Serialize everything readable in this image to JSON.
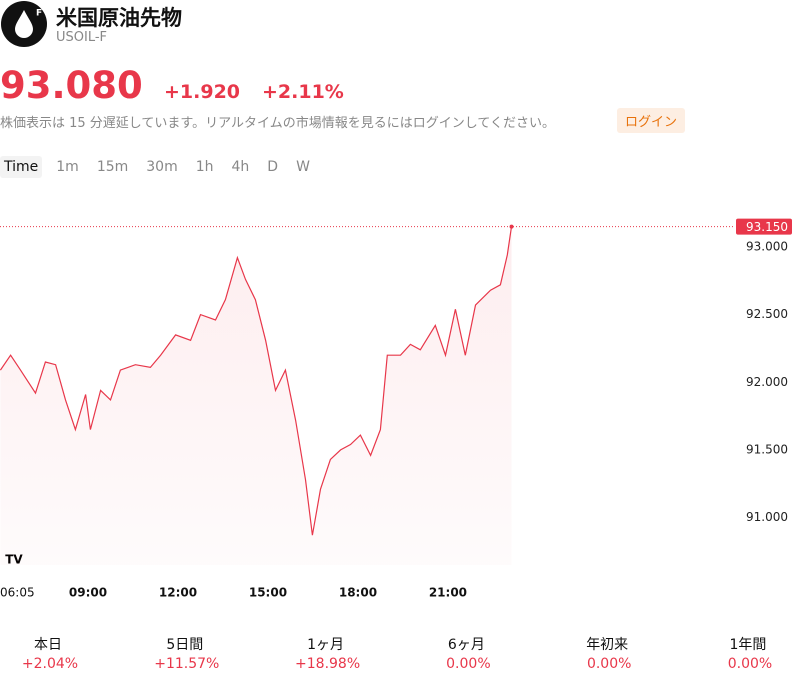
{
  "header": {
    "name": "米国原油先物",
    "symbol": "USOIL-F",
    "price": "93.080",
    "change": "+1.920",
    "change_pct": "+2.11%",
    "notice": "株価表示は 15 分遅延しています。リアルタイムの市場情報を見るにはログインしてください。",
    "login": "ログイン"
  },
  "intervals": [
    "Time",
    "1m",
    "15m",
    "30m",
    "1h",
    "4h",
    "D",
    "W"
  ],
  "chart_data": {
    "type": "line",
    "color": "#e8374a",
    "x": [
      6.08,
      6.42,
      6.75,
      7.25,
      7.58,
      7.92,
      8.25,
      8.58,
      8.92,
      9.08,
      9.42,
      9.75,
      10.08,
      10.58,
      11.08,
      11.42,
      11.92,
      12.42,
      12.75,
      13.25,
      13.58,
      13.98,
      14.25,
      14.58,
      14.92,
      15.25,
      15.58,
      15.92,
      16.25,
      16.48,
      16.75,
      17.08,
      17.42,
      17.75,
      18.08,
      18.42,
      18.75,
      18.98,
      19.42,
      19.75,
      20.08,
      20.58,
      20.92,
      21.25,
      21.58,
      21.92,
      22.42,
      22.75,
      22.98,
      23.12
    ],
    "values": [
      92.09,
      92.2,
      92.09,
      91.92,
      92.15,
      92.13,
      91.87,
      91.65,
      91.91,
      91.65,
      91.94,
      91.87,
      92.09,
      92.13,
      92.11,
      92.2,
      92.35,
      92.31,
      92.5,
      92.46,
      92.61,
      92.92,
      92.76,
      92.61,
      92.31,
      91.94,
      92.09,
      91.72,
      91.28,
      90.87,
      91.21,
      91.43,
      91.5,
      91.54,
      91.61,
      91.46,
      91.65,
      92.2,
      92.2,
      92.28,
      92.24,
      92.42,
      92.2,
      92.54,
      92.2,
      92.57,
      92.68,
      92.72,
      92.94,
      93.15
    ],
    "xlim": [
      6.0833,
      30.57
    ],
    "ylim": [
      90.65,
      93.45
    ],
    "xticks": [
      {
        "value": 6.0833,
        "label": "06:05"
      },
      {
        "value": 9,
        "label": "09:00"
      },
      {
        "value": 12,
        "label": "12:00"
      },
      {
        "value": 15,
        "label": "15:00"
      },
      {
        "value": 18,
        "label": "18:00"
      },
      {
        "value": 21,
        "label": "21:00"
      }
    ],
    "yticks": [
      {
        "value": 91,
        "label": "91.000"
      },
      {
        "value": 91.5,
        "label": "91.500"
      },
      {
        "value": 92,
        "label": "92.000"
      },
      {
        "value": 92.5,
        "label": "92.500"
      },
      {
        "value": 93,
        "label": "93.000"
      }
    ],
    "last_price": {
      "value": 93.15,
      "label": "93.150"
    }
  },
  "periods": [
    {
      "label": "本日",
      "change": "+2.04%"
    },
    {
      "label": "5日間",
      "change": "+11.57%"
    },
    {
      "label": "1ヶ月",
      "change": "+18.98%"
    },
    {
      "label": "6ヶ月",
      "change": "0.00%"
    },
    {
      "label": "年初来",
      "change": "0.00%"
    },
    {
      "label": "1年間",
      "change": "0.00%"
    }
  ]
}
